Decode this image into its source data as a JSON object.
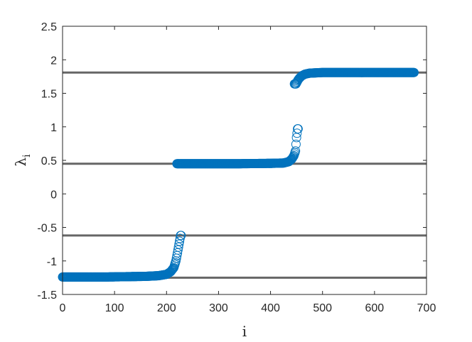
{
  "chart_data": {
    "type": "scatter",
    "title": "",
    "xlabel": "i",
    "ylabel_main": "λ",
    "ylabel_sub": "i",
    "xlim": [
      0,
      700
    ],
    "ylim": [
      -1.5,
      2.5
    ],
    "xticks": [
      0,
      100,
      200,
      300,
      400,
      500,
      600,
      700
    ],
    "yticks": [
      -1.5,
      -1,
      -0.5,
      0,
      0.5,
      1,
      1.5,
      2,
      2.5
    ],
    "xtick_labels": [
      "0",
      "100",
      "200",
      "300",
      "400",
      "500",
      "600",
      "700"
    ],
    "ytick_labels": [
      "-1.5",
      "-1",
      "-0.5",
      "0",
      "0.5",
      "1",
      "1.5",
      "2",
      "2.5"
    ],
    "grid": false,
    "reference_lines": [
      1.81,
      0.45,
      -0.62,
      -1.25
    ],
    "reference_line_color": "#666666",
    "marker_color": "#0072BD",
    "series": [
      {
        "segments": [
          {
            "x_start": 0,
            "x_end": 228,
            "points": [
              [
                0,
                -1.24
              ],
              [
                40,
                -1.24
              ],
              [
                80,
                -1.24
              ],
              [
                120,
                -1.235
              ],
              [
                160,
                -1.23
              ],
              [
                185,
                -1.22
              ],
              [
                200,
                -1.2
              ],
              [
                208,
                -1.16
              ],
              [
                214,
                -1.1
              ],
              [
                218,
                -1.0
              ],
              [
                221,
                -0.88
              ],
              [
                224,
                -0.75
              ],
              [
                227,
                -0.62
              ]
            ]
          },
          {
            "x_start": 220,
            "x_end": 453,
            "points": [
              [
                220,
                0.45
              ],
              [
                280,
                0.45
              ],
              [
                340,
                0.45
              ],
              [
                400,
                0.455
              ],
              [
                425,
                0.46
              ],
              [
                435,
                0.48
              ],
              [
                441,
                0.52
              ],
              [
                445,
                0.57
              ],
              [
                448,
                0.64
              ],
              [
                450,
                0.84
              ],
              [
                452,
                0.97
              ]
            ]
          },
          {
            "x_start": 446,
            "x_end": 676,
            "points": [
              [
                449,
                1.64
              ],
              [
                451,
                1.67
              ],
              [
                453,
                1.7
              ],
              [
                456,
                1.73
              ],
              [
                460,
                1.76
              ],
              [
                466,
                1.785
              ],
              [
                475,
                1.8
              ],
              [
                500,
                1.81
              ],
              [
                600,
                1.81
              ],
              [
                676,
                1.81
              ]
            ]
          }
        ]
      }
    ]
  }
}
